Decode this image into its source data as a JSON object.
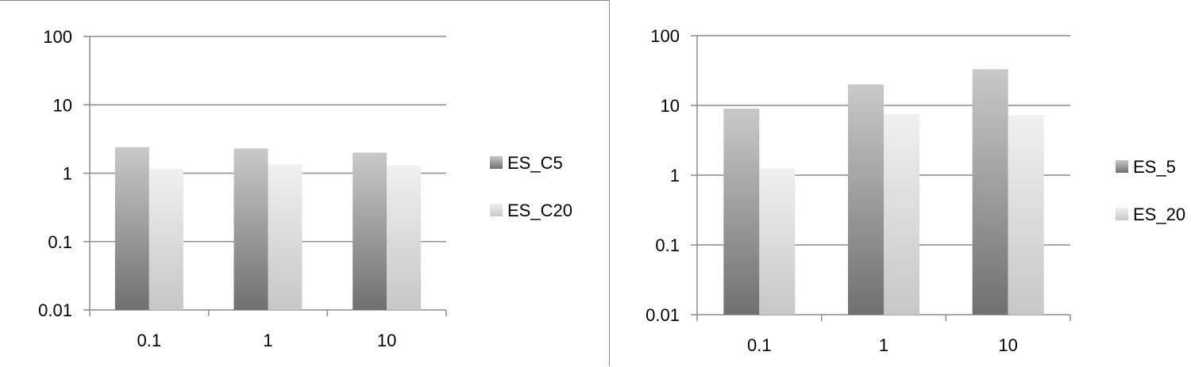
{
  "chart_data": [
    {
      "type": "bar",
      "y_scale": "log",
      "ylim": [
        0.01,
        100
      ],
      "y_ticks": [
        "100",
        "10",
        "1",
        "0.1",
        "0.01"
      ],
      "categories": [
        "0.1",
        "1",
        "10"
      ],
      "grid": true,
      "legend_position": "right",
      "series": [
        {
          "name": "ES_C5",
          "values": [
            2.4,
            2.3,
            2.0
          ]
        },
        {
          "name": "ES_C20",
          "values": [
            1.15,
            1.35,
            1.3
          ]
        }
      ]
    },
    {
      "type": "bar",
      "y_scale": "log",
      "ylim": [
        0.01,
        100
      ],
      "y_ticks": [
        "100",
        "10",
        "1",
        "0.1",
        "0.01"
      ],
      "categories": [
        "0.1",
        "1",
        "10"
      ],
      "grid": true,
      "legend_position": "right",
      "series": [
        {
          "name": "ES_5",
          "values": [
            9.0,
            20.0,
            33.0
          ]
        },
        {
          "name": "ES_20",
          "values": [
            1.25,
            7.5,
            7.3
          ]
        }
      ]
    }
  ],
  "colors": {
    "dark_bar_top": "#c9c9c9",
    "dark_bar_bottom": "#707070",
    "light_bar_top": "#f0f0f0",
    "light_bar_bottom": "#c7c7c7",
    "gridline": "#8c8c8c"
  }
}
